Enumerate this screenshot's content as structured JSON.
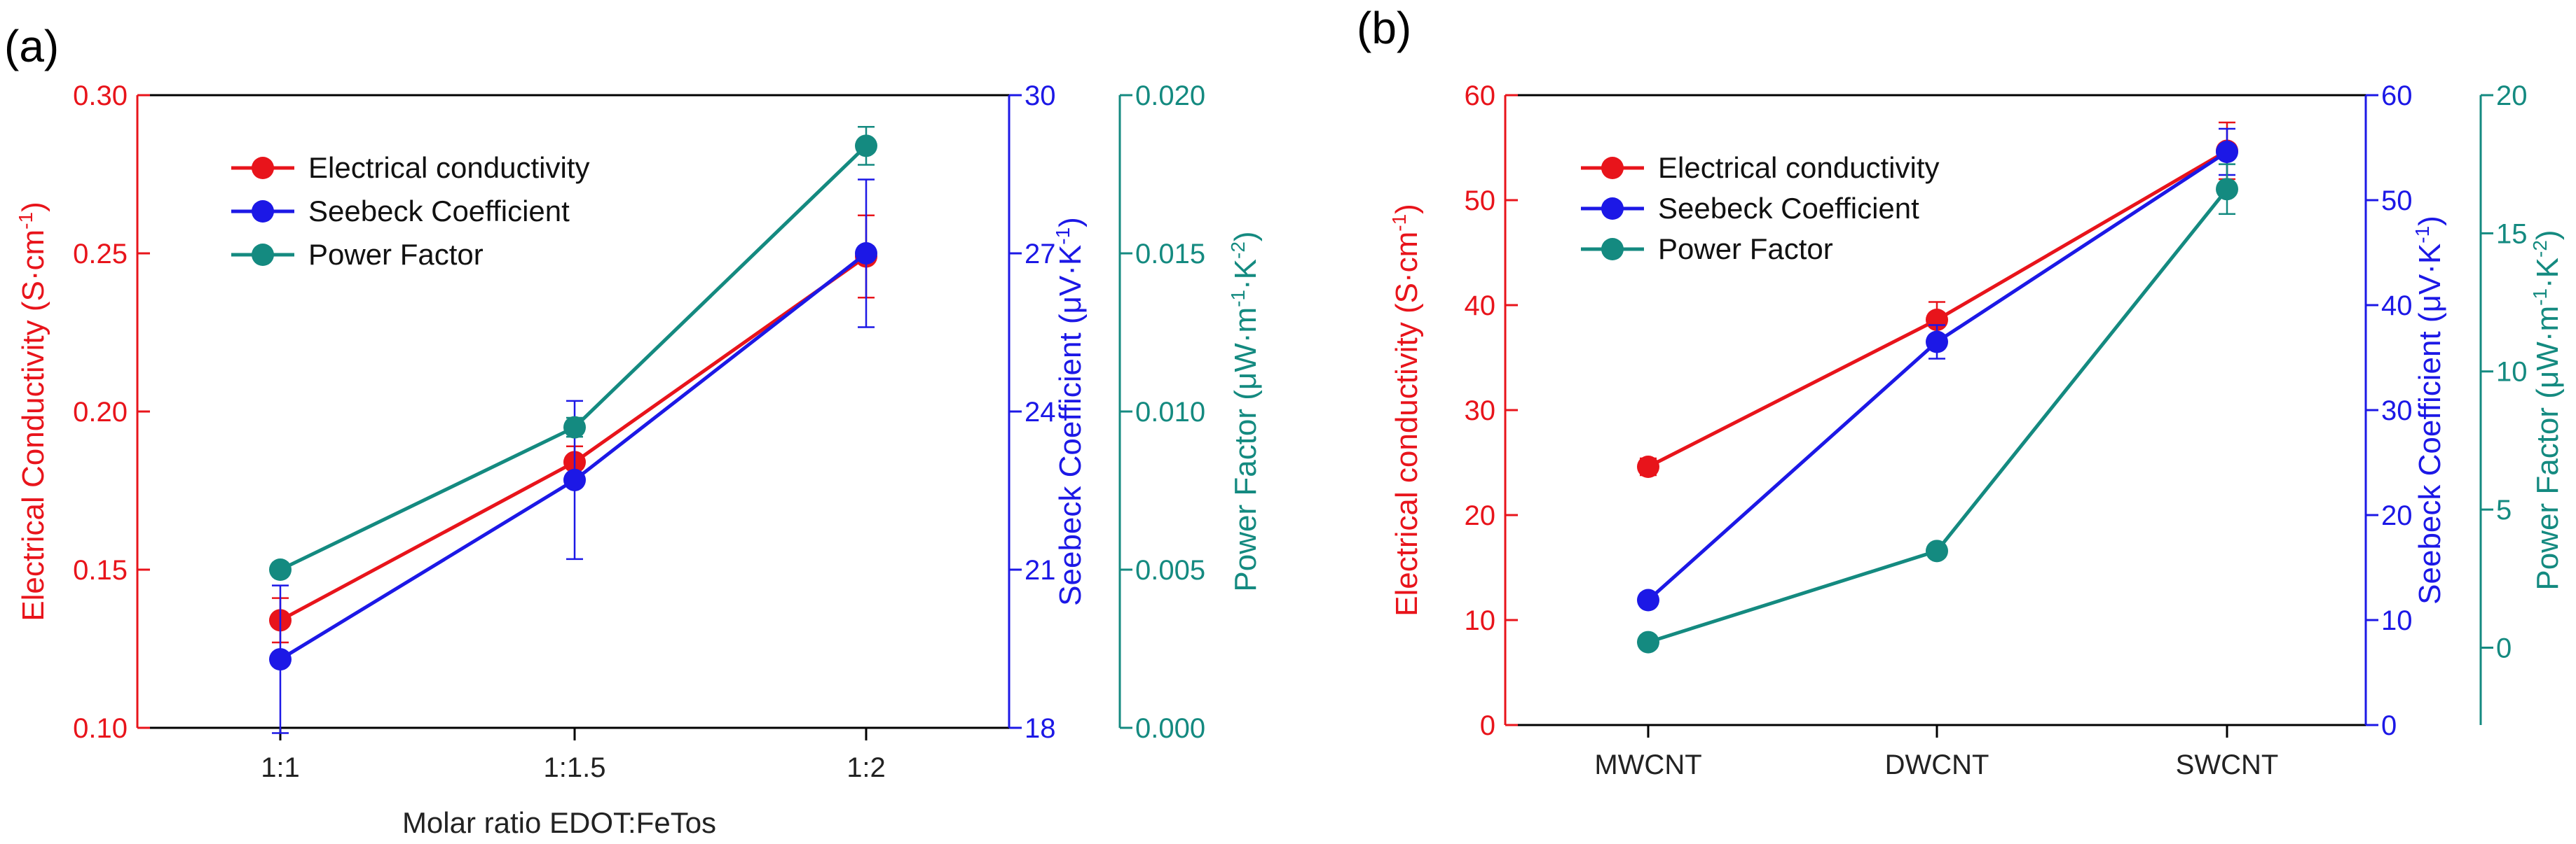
{
  "panel_a_label": "(a)",
  "panel_b_label": "(b)",
  "mu": "μ",
  "dot": "·",
  "sup_minus_one": "-1",
  "sup_minus_two": "-2",
  "colors": {
    "conductivity": "#e8141b",
    "seebeck": "#1c18e6",
    "power_factor": "#148a80",
    "axis": "#000000"
  },
  "chart_data": [
    {
      "type": "line",
      "panel": "(a)",
      "xlabel": "Molar ratio EDOT:FeTos",
      "categories": [
        "1:1",
        "1:1.5",
        "1:2"
      ],
      "legend_position": "upper-left",
      "axes": {
        "conductivity": {
          "label_text": "Electrical Conductivity (S",
          "unit_middle": "cm",
          "ylim": [
            0.1,
            0.3
          ],
          "ticks": [
            "0.10",
            "0.15",
            "0.20",
            "0.25",
            "0.30"
          ]
        },
        "seebeck": {
          "label_text": "Seebeck Coefficient (",
          "unit_middle": "V",
          "unit_tail": "K",
          "ylim": [
            18,
            30
          ],
          "ticks": [
            "18",
            "21",
            "24",
            "27",
            "30"
          ]
        },
        "power_factor": {
          "label_text": "Power Factor (",
          "unit_middle": "W",
          "unit_mid2": "m",
          "unit_tail": "K",
          "ylim": [
            0.0,
            0.02
          ],
          "ticks": [
            "0.000",
            "0.005",
            "0.010",
            "0.015",
            "0.020"
          ]
        }
      },
      "series": [
        {
          "name": "Electrical conductivity",
          "axis": "conductivity",
          "values": [
            0.134,
            0.184,
            0.249
          ],
          "errors": [
            0.007,
            0.005,
            0.013
          ]
        },
        {
          "name": "Seebeck Coefficient",
          "axis": "seebeck",
          "values": [
            19.3,
            22.7,
            27.0
          ],
          "errors": [
            1.4,
            1.5,
            1.4
          ]
        },
        {
          "name": "Power Factor",
          "axis": "power_factor",
          "values": [
            0.005,
            0.0095,
            0.0184
          ],
          "errors": [
            0.0002,
            0.0003,
            0.0006
          ]
        }
      ]
    },
    {
      "type": "line",
      "panel": "(b)",
      "xlabel": "",
      "categories": [
        "MWCNT",
        "DWCNT",
        "SWCNT"
      ],
      "legend_position": "upper-left",
      "axes": {
        "conductivity": {
          "label_text": "Electrical conductivity (S",
          "unit_middle": "cm",
          "ylim": [
            0,
            60
          ],
          "ticks": [
            "0",
            "10",
            "20",
            "30",
            "40",
            "50",
            "60"
          ]
        },
        "seebeck": {
          "label_text": "Seebeck Coefficient (",
          "unit_middle": "V",
          "unit_tail": "K",
          "ylim": [
            0,
            60
          ],
          "ticks": [
            "0",
            "10",
            "20",
            "30",
            "40",
            "50",
            "60"
          ]
        },
        "power_factor": {
          "label_text": "Power Factor (",
          "unit_middle": "W",
          "unit_mid2": "m",
          "unit_tail": "K",
          "ylim": [
            -2.8,
            20
          ],
          "ticks": [
            "0",
            "5",
            "10",
            "15",
            "20"
          ]
        }
      },
      "series": [
        {
          "name": "Electrical conductivity",
          "axis": "conductivity",
          "values": [
            24.6,
            38.6,
            54.7
          ],
          "errors": [
            0.8,
            1.7,
            2.7
          ]
        },
        {
          "name": "Seebeck Coefficient",
          "axis": "seebeck",
          "values": [
            11.9,
            36.5,
            54.6
          ],
          "errors": [
            0.6,
            1.6,
            2.2
          ]
        },
        {
          "name": "Power Factor",
          "axis": "power_factor",
          "values": [
            0.2,
            3.5,
            16.6
          ],
          "errors": [
            0.2,
            0.2,
            0.9
          ]
        }
      ]
    }
  ]
}
